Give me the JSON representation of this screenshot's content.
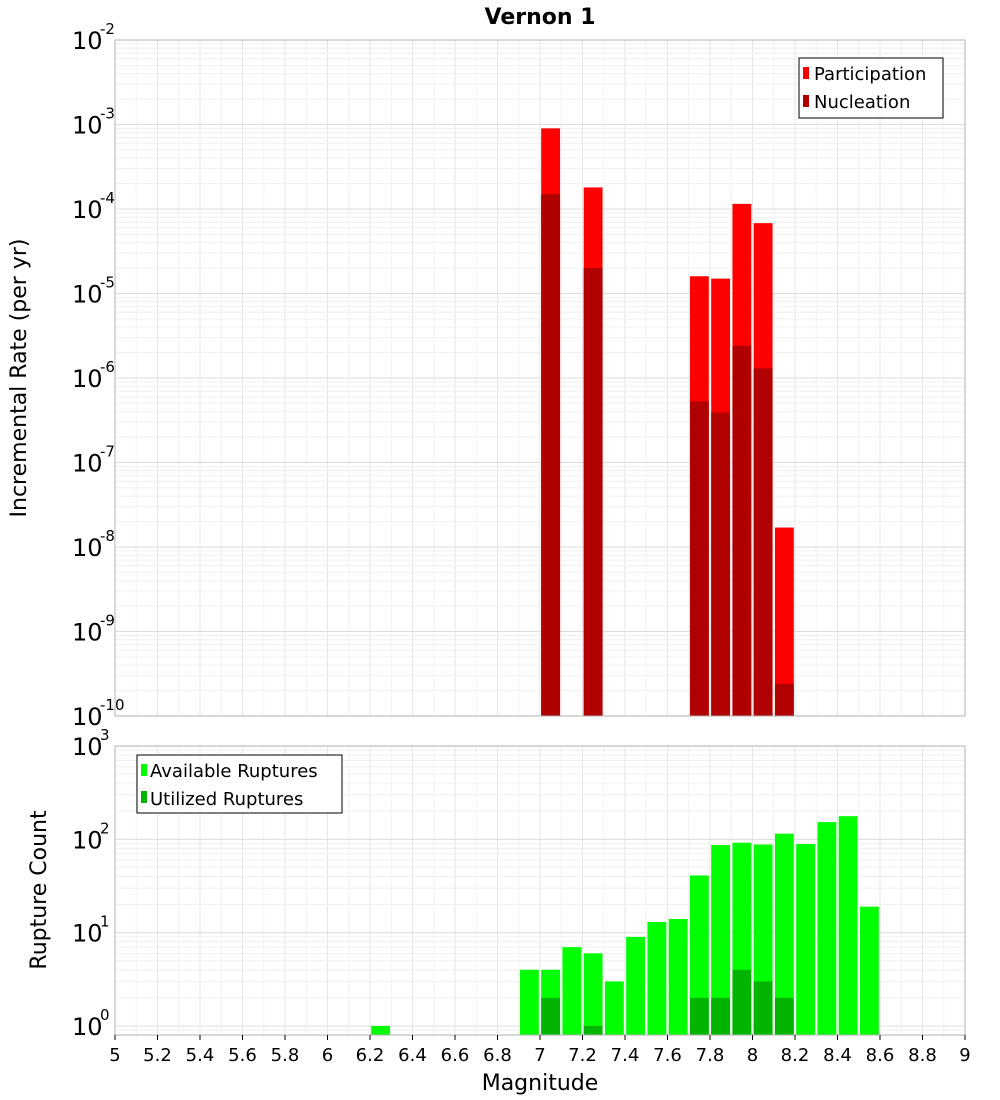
{
  "chart_data": [
    {
      "type": "bar",
      "title": "Vernon 1",
      "ylabel": "Incremental Rate (per yr)",
      "xlabel": "",
      "xlim": [
        5,
        9
      ],
      "ylim": [
        1e-10,
        0.01
      ],
      "yscale": "log",
      "bin_width": 0.1,
      "grid": true,
      "legend_position": "top-right",
      "y_tick_exponents": [
        -2,
        -3,
        -4,
        -5,
        -6,
        -7,
        -8,
        -9,
        -10
      ],
      "series": [
        {
          "name": "Participation",
          "color": "#ff0000",
          "x": [
            7.05,
            7.25,
            7.75,
            7.85,
            7.95,
            8.05,
            8.15
          ],
          "values": [
            0.0009,
            0.00018,
            1.6e-05,
            1.5e-05,
            0.000115,
            6.8e-05,
            1.7e-08
          ]
        },
        {
          "name": "Nucleation",
          "color": "#b00000",
          "x": [
            7.05,
            7.25,
            7.75,
            7.85,
            7.95,
            8.05,
            8.15
          ],
          "values": [
            0.00015,
            2e-05,
            5.3e-07,
            3.9e-07,
            2.4e-06,
            1.3e-06,
            2.4e-10
          ]
        }
      ]
    },
    {
      "type": "bar",
      "title": "",
      "ylabel": "Rupture Count",
      "xlabel": "Magnitude",
      "xlim": [
        5,
        9
      ],
      "ylim": [
        0.8,
        1000
      ],
      "yscale": "log",
      "bin_width": 0.1,
      "grid": true,
      "legend_position": "top-left",
      "y_tick_exponents": [
        0,
        1,
        2,
        3
      ],
      "x_ticks": [
        "5",
        "5.2",
        "5.4",
        "5.6",
        "5.8",
        "6",
        "6.2",
        "6.4",
        "6.6",
        "6.8",
        "7",
        "7.2",
        "7.4",
        "7.6",
        "7.8",
        "8",
        "8.2",
        "8.4",
        "8.6",
        "8.8",
        "9"
      ],
      "series": [
        {
          "name": "Available Ruptures",
          "color": "#00ff00",
          "x": [
            6.25,
            6.95,
            7.05,
            7.15,
            7.25,
            7.35,
            7.45,
            7.55,
            7.65,
            7.75,
            7.85,
            7.95,
            8.05,
            8.15,
            8.25,
            8.35,
            8.45,
            8.55
          ],
          "values": [
            1,
            4,
            4,
            7,
            6,
            3,
            9,
            13,
            14,
            41,
            87,
            92,
            88,
            115,
            89,
            153,
            177,
            19
          ]
        },
        {
          "name": "Utilized Ruptures",
          "color": "#00b400",
          "x": [
            7.05,
            7.25,
            7.75,
            7.85,
            7.95,
            8.05,
            8.15
          ],
          "values": [
            2,
            1,
            2,
            2,
            4,
            3,
            2
          ]
        }
      ]
    }
  ]
}
